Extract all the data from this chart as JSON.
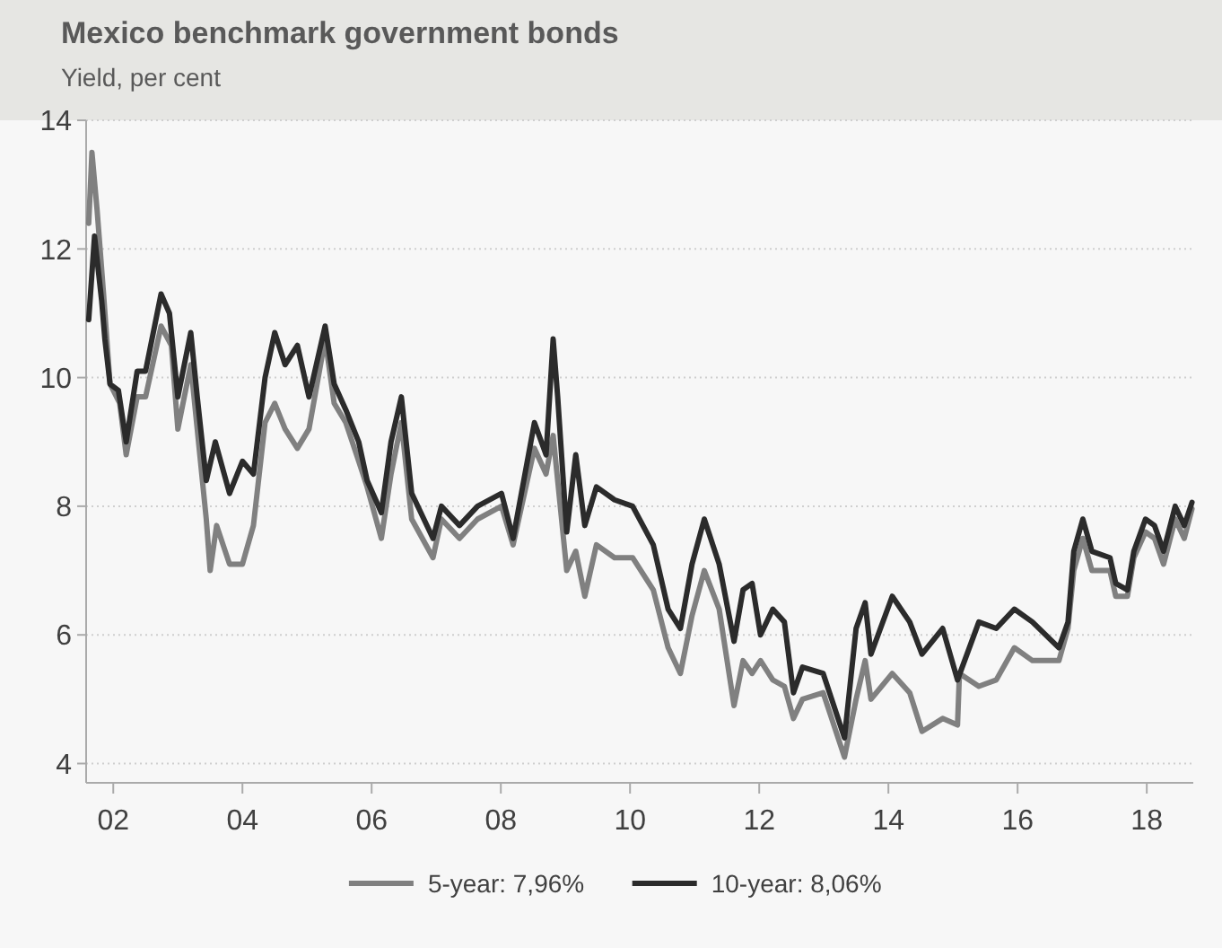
{
  "chart_data": {
    "type": "line",
    "title": "Mexico benchmark government bonds",
    "subtitle": "Yield, per cent",
    "xlim": [
      2001.58,
      2018.72
    ],
    "xticks": [
      {
        "value": 2002,
        "label": "02"
      },
      {
        "value": 2004,
        "label": "04"
      },
      {
        "value": 2006,
        "label": "06"
      },
      {
        "value": 2008,
        "label": "08"
      },
      {
        "value": 2010,
        "label": "10"
      },
      {
        "value": 2012,
        "label": "12"
      },
      {
        "value": 2014,
        "label": "14"
      },
      {
        "value": 2016,
        "label": "16"
      },
      {
        "value": 2018,
        "label": "18"
      }
    ],
    "ylim": [
      3.7,
      14
    ],
    "yticks": [
      4,
      6,
      8,
      10,
      12,
      14
    ],
    "grid": "y",
    "legend": "bottom",
    "line_style": "solid",
    "marker": "none",
    "series": [
      {
        "name": "5-year: 7,96%",
        "color": "#808080",
        "x": [
          2001.62,
          2001.67,
          2001.75,
          2001.85,
          2001.95,
          2002.1,
          2002.2,
          2002.37,
          2002.5,
          2002.74,
          2002.9,
          2003.0,
          2003.2,
          2003.3,
          2003.44,
          2003.5,
          2003.6,
          2003.8,
          2004.0,
          2004.17,
          2004.35,
          2004.5,
          2004.66,
          2004.85,
          2005.03,
          2005.28,
          2005.42,
          2005.6,
          2005.8,
          2005.93,
          2006.15,
          2006.3,
          2006.46,
          2006.62,
          2006.95,
          2007.08,
          2007.36,
          2007.64,
          2008.01,
          2008.19,
          2008.52,
          2008.7,
          2008.81,
          2009.02,
          2009.16,
          2009.3,
          2009.48,
          2009.76,
          2010.04,
          2010.36,
          2010.59,
          2010.78,
          2010.96,
          2011.15,
          2011.38,
          2011.61,
          2011.75,
          2011.89,
          2012.02,
          2012.21,
          2012.39,
          2012.53,
          2012.67,
          2012.99,
          2013.32,
          2013.5,
          2013.64,
          2013.73,
          2014.06,
          2014.33,
          2014.52,
          2014.84,
          2015.07,
          2015.1,
          2015.4,
          2015.67,
          2015.95,
          2016.23,
          2016.64,
          2016.78,
          2016.87,
          2017.01,
          2017.15,
          2017.43,
          2017.52,
          2017.7,
          2017.8,
          2017.98,
          2018.12,
          2018.26,
          2018.44,
          2018.58,
          2018.7
        ],
        "values": [
          12.4,
          13.5,
          12.6,
          11.3,
          9.9,
          9.6,
          8.8,
          9.7,
          9.7,
          10.8,
          10.5,
          9.2,
          10.2,
          9.2,
          7.8,
          7.0,
          7.7,
          7.1,
          7.1,
          7.7,
          9.3,
          9.6,
          9.2,
          8.9,
          9.2,
          10.6,
          9.6,
          9.3,
          8.7,
          8.3,
          7.5,
          8.5,
          9.3,
          7.8,
          7.2,
          7.8,
          7.5,
          7.8,
          8.0,
          7.4,
          8.9,
          8.5,
          9.1,
          7.0,
          7.3,
          6.6,
          7.4,
          7.2,
          7.2,
          6.7,
          5.8,
          5.4,
          6.3,
          7.0,
          6.4,
          4.9,
          5.6,
          5.4,
          5.6,
          5.3,
          5.2,
          4.7,
          5.0,
          5.1,
          4.1,
          5.0,
          5.6,
          5.0,
          5.4,
          5.1,
          4.5,
          4.7,
          4.6,
          5.4,
          5.2,
          5.3,
          5.8,
          5.6,
          5.6,
          6.1,
          7.0,
          7.5,
          7.0,
          7.0,
          6.6,
          6.6,
          7.2,
          7.6,
          7.5,
          7.1,
          7.8,
          7.5,
          7.96
        ]
      },
      {
        "name": "10-year: 8,06%",
        "color": "#2b2b2b",
        "x": [
          2001.62,
          2001.71,
          2001.82,
          2001.87,
          2001.95,
          2002.08,
          2002.2,
          2002.37,
          2002.5,
          2002.74,
          2002.87,
          2003.0,
          2003.2,
          2003.3,
          2003.44,
          2003.58,
          2003.8,
          2004.0,
          2004.17,
          2004.35,
          2004.5,
          2004.66,
          2004.85,
          2005.03,
          2005.28,
          2005.42,
          2005.6,
          2005.8,
          2005.93,
          2006.15,
          2006.3,
          2006.46,
          2006.62,
          2006.95,
          2007.08,
          2007.36,
          2007.64,
          2008.01,
          2008.19,
          2008.52,
          2008.7,
          2008.81,
          2008.88,
          2009.02,
          2009.16,
          2009.3,
          2009.48,
          2009.76,
          2010.04,
          2010.36,
          2010.59,
          2010.78,
          2010.96,
          2011.15,
          2011.38,
          2011.61,
          2011.75,
          2011.89,
          2012.02,
          2012.21,
          2012.39,
          2012.53,
          2012.67,
          2012.99,
          2013.32,
          2013.5,
          2013.64,
          2013.73,
          2014.06,
          2014.33,
          2014.52,
          2014.84,
          2015.07,
          2015.4,
          2015.67,
          2015.95,
          2016.23,
          2016.64,
          2016.78,
          2016.87,
          2017.01,
          2017.15,
          2017.43,
          2017.52,
          2017.7,
          2017.8,
          2017.98,
          2018.12,
          2018.26,
          2018.44,
          2018.58,
          2018.7
        ],
        "values": [
          10.9,
          12.2,
          11.2,
          10.6,
          9.9,
          9.8,
          9.0,
          10.1,
          10.1,
          11.3,
          11.0,
          9.7,
          10.7,
          9.7,
          8.4,
          9.0,
          8.2,
          8.7,
          8.5,
          10.0,
          10.7,
          10.2,
          10.5,
          9.7,
          10.8,
          9.9,
          9.5,
          9.0,
          8.4,
          7.9,
          9.0,
          9.7,
          8.2,
          7.5,
          8.0,
          7.7,
          8.0,
          8.2,
          7.5,
          9.3,
          8.8,
          10.6,
          9.7,
          7.6,
          8.8,
          7.7,
          8.3,
          8.1,
          8.0,
          7.4,
          6.4,
          6.1,
          7.1,
          7.8,
          7.1,
          5.9,
          6.7,
          6.8,
          6.0,
          6.4,
          6.2,
          5.1,
          5.5,
          5.4,
          4.4,
          6.1,
          6.5,
          5.7,
          6.6,
          6.2,
          5.7,
          6.1,
          5.3,
          6.2,
          6.1,
          6.4,
          6.2,
          5.8,
          6.2,
          7.3,
          7.8,
          7.3,
          7.2,
          6.8,
          6.7,
          7.3,
          7.8,
          7.7,
          7.3,
          8.0,
          7.7,
          8.06
        ]
      }
    ]
  }
}
